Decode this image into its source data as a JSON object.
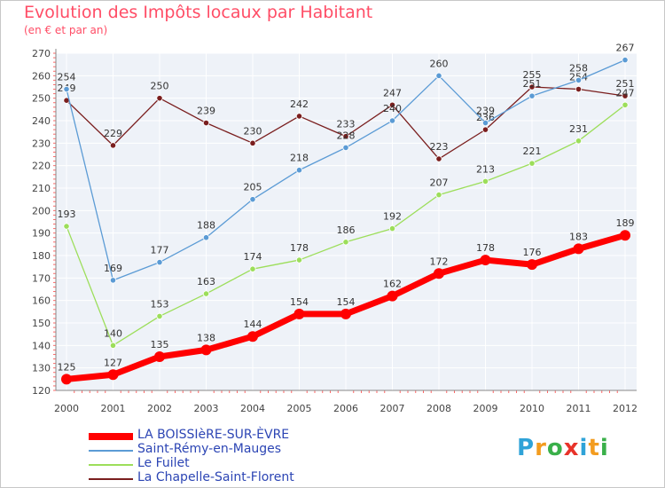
{
  "header": {
    "title": "Evolution des Impôts locaux par Habitant",
    "subtitle": "(en € et par an)"
  },
  "logo": {
    "letters": [
      "P",
      "r",
      "o",
      "x",
      "i",
      "t",
      "i"
    ],
    "colors": [
      "#2fa3d8",
      "#f39c1f",
      "#3ab04a",
      "#e8332a",
      "#2fa3d8",
      "#f39c1f",
      "#3ab04a"
    ]
  },
  "chart_data": {
    "type": "line",
    "title": "Evolution des Impôts locaux par Habitant",
    "subtitle": "(en € et par an)",
    "xlabel": "",
    "ylabel": "",
    "x": [
      "2000",
      "2001",
      "2002",
      "2003",
      "2004",
      "2005",
      "2006",
      "2007",
      "2008",
      "2009",
      "2010",
      "2011",
      "2012"
    ],
    "ylim": [
      120,
      270
    ],
    "yticks": [
      120,
      130,
      140,
      150,
      160,
      170,
      180,
      190,
      200,
      210,
      220,
      230,
      240,
      250,
      260,
      270
    ],
    "grid": true,
    "legend": "bottom",
    "series": [
      {
        "name": "La Chapelle-Saint-Florent",
        "color": "#7a1e1e",
        "values": [
          249,
          229,
          250,
          239,
          230,
          242,
          233,
          247,
          223,
          236,
          255,
          254,
          251
        ]
      },
      {
        "name": "Saint-Rémy-en-Mauges",
        "color": "#5b9bd5",
        "values": [
          254,
          169,
          177,
          188,
          205,
          218,
          228,
          240,
          260,
          239,
          251,
          258,
          267
        ]
      },
      {
        "name": "Le Fuilet",
        "color": "#9cde5a",
        "values": [
          193,
          140,
          153,
          163,
          174,
          178,
          186,
          192,
          207,
          213,
          221,
          231,
          247
        ]
      },
      {
        "name": "LA BOISSIèRE-SUR-ÈVRE",
        "color": "#ff0000",
        "values": [
          125,
          127,
          135,
          138,
          144,
          154,
          154,
          162,
          172,
          178,
          176,
          183,
          189
        ]
      }
    ]
  },
  "legend_items": [
    {
      "label": "LA BOISSIèRE-SUR-ÈVRE",
      "color": "#ff0000"
    },
    {
      "label": "Saint-Rémy-en-Mauges",
      "color": "#5b9bd5"
    },
    {
      "label": "Le Fuilet",
      "color": "#9cde5a"
    },
    {
      "label": "La Chapelle-Saint-Florent",
      "color": "#7a1e1e"
    }
  ]
}
